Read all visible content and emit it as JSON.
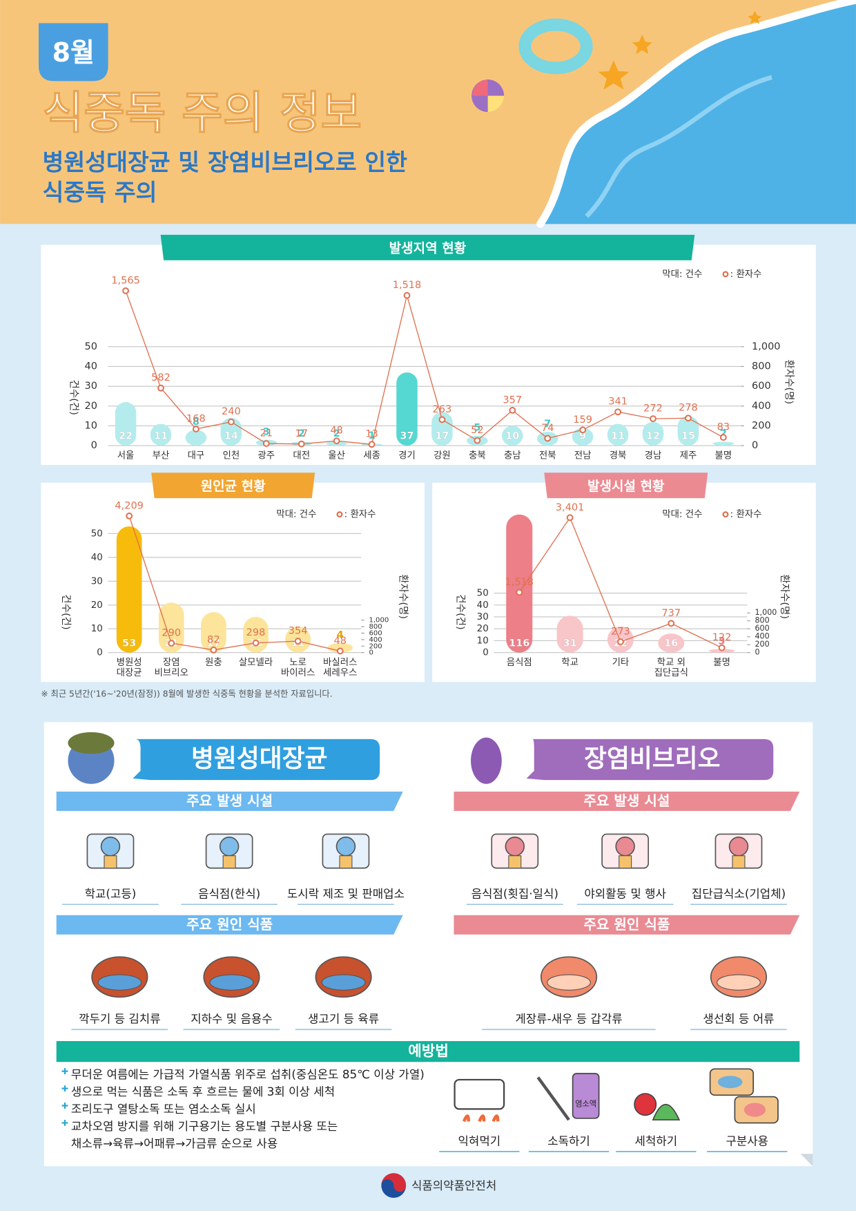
{
  "header": {
    "month": "8월",
    "title": "식중독 주의 정보",
    "subtitle": [
      "병원성대장균 및 장염비브리오로 인한",
      "식중독 주의"
    ]
  },
  "chart_data": [
    {
      "type": "bar-line",
      "title": "발생지역 현황",
      "categories": [
        "서울",
        "부산",
        "대구",
        "인천",
        "광주",
        "대전",
        "울산",
        "세종",
        "경기",
        "강원",
        "충북",
        "충남",
        "전북",
        "전남",
        "경북",
        "경남",
        "제주",
        "불명"
      ],
      "series": [
        {
          "name": "막대: 건수",
          "values": [
            22,
            11,
            8,
            14,
            3,
            2,
            2,
            1,
            37,
            17,
            5,
            10,
            7,
            9,
            11,
            12,
            15,
            2
          ],
          "colors": [
            "#b4eced",
            "#b4eced",
            "#b4eced",
            "#b4eced",
            "#b4eced",
            "#b4eced",
            "#b4eced",
            "#b4eced",
            "#55d8d2",
            "#b4eced",
            "#b4eced",
            "#b4eced",
            "#b4eced",
            "#b4eced",
            "#b4eced",
            "#b4eced",
            "#b4eced",
            "#b4eced"
          ]
        },
        {
          "name": ": 환자수",
          "axis": "y2",
          "color": "#e0704f",
          "values": [
            1565,
            582,
            168,
            240,
            21,
            17,
            48,
            13,
            1518,
            263,
            52,
            357,
            74,
            159,
            341,
            272,
            278,
            83
          ],
          "value_labels": [
            "1,565",
            "582",
            "168",
            "240",
            "21",
            "17",
            "48",
            "13",
            "1,518",
            "263",
            "52",
            "357",
            "74",
            "159",
            "341",
            "272",
            "278",
            "83"
          ]
        }
      ],
      "ylim": [
        0,
        80
      ],
      "yticks": [
        0,
        10,
        20,
        30,
        40,
        50
      ],
      "y2lim": [
        0,
        1600
      ],
      "y2ticks": [
        0,
        200,
        400,
        600,
        800,
        {
          "value": 1000,
          "label": "1,000"
        }
      ],
      "ylabel": "건수(건)",
      "y2label": "환자수(명)",
      "grid": true
    },
    {
      "type": "bar-line",
      "title": "원인균 현황",
      "categories": [
        "병원성\n대장균",
        "장염\n비브리오",
        "원충",
        "살모넬라",
        "노로\n바이러스",
        "바실러스\n세레우스"
      ],
      "series": [
        {
          "name": "막대: 건수",
          "values": [
            53,
            21,
            17,
            15,
            11,
            4
          ],
          "colors": [
            "#f6bb0b",
            "#fce49a",
            "#fce49a",
            "#fce49a",
            "#fce49a",
            "#fce49a"
          ]
        },
        {
          "name": ": 환자수",
          "axis": "y2",
          "color": "#e0704f",
          "values": [
            4209,
            290,
            82,
            298,
            354,
            48
          ],
          "value_labels": [
            "4,209",
            "290",
            "82",
            "298",
            "354",
            "48"
          ]
        }
      ],
      "ylim": [
        0,
        60
      ],
      "yticks": [
        0,
        10,
        20,
        30,
        40,
        50
      ],
      "y2lim": [
        0,
        4400
      ],
      "y2ticks": [
        0,
        200,
        400,
        600,
        800,
        {
          "value": 1000,
          "label": "1,000"
        }
      ],
      "ylabel": "건수(건)",
      "y2label": "환자수(명)",
      "grid": true
    },
    {
      "type": "bar-line",
      "title": "발생시설 현황",
      "categories": [
        "음식점",
        "학교",
        "기타",
        "학교 외\n집단급식",
        "불명"
      ],
      "series": [
        {
          "name": "막대: 건수",
          "values": [
            116,
            31,
            22,
            16,
            3
          ],
          "colors": [
            "#ec7f88",
            "#f8c5c9",
            "#f8c5c9",
            "#f8c5c9",
            "#f8c5c9"
          ]
        },
        {
          "name": ": 환자수",
          "axis": "y2",
          "color": "#e0704f",
          "values": [
            1518,
            3401,
            273,
            737,
            122
          ],
          "value_labels": [
            "1,518",
            "3,401",
            "273",
            "737",
            "122"
          ]
        }
      ],
      "ylim": [
        0,
        120
      ],
      "yticks": [
        0,
        10,
        20,
        30,
        40,
        50
      ],
      "y2lim": [
        0,
        3600
      ],
      "y2ticks": [
        0,
        200,
        400,
        600,
        800,
        {
          "value": 1000,
          "label": "1,000"
        }
      ],
      "ylabel": "건수(건)",
      "y2label": "환자수(명)",
      "grid": true
    }
  ],
  "footnote": "※ 최근 5년간('16~'20년(잠정)) 8월에 발생한 식중독 현황을 분석한 자료입니다.",
  "pathogens": [
    {
      "name": "병원성대장균",
      "facilities_title": "주요 발생 시설",
      "facilities": [
        "학교(고등)",
        "음식점(한식)",
        "도시락 제조 및 판매업소"
      ],
      "foods_title": "주요 원인 식품",
      "foods": [
        "깍두기 등 김치류",
        "지하수 및 음용수",
        "생고기 등 육류"
      ]
    },
    {
      "name": "장염비브리오",
      "facilities_title": "주요 발생 시설",
      "facilities": [
        "음식점(횟집·일식)",
        "야외활동 및 행사",
        "집단급식소(기업체)"
      ],
      "foods_title": "주요 원인 식품",
      "foods": [
        "게장류-새우 등 갑각류",
        "생선회 등 어류"
      ]
    }
  ],
  "prevention": {
    "title": "예방법",
    "tips": [
      [
        "무더운 여름에는 가급적 가열식품 위주로 섭취(중심온도 85℃ 이상 가열)"
      ],
      [
        "생으로 먹는 식품은 소독 후 흐르는 물에 3회 이상 세척"
      ],
      [
        "조리도구 열탕소독 또는 염소소독 실시"
      ],
      [
        "교차오염 방지를 위해 기구용기는 용도별 구분사용 또는",
        "채소류→육류→어패류→가금류 순으로 사용"
      ]
    ],
    "actions": [
      "익혀먹기",
      "소독하기",
      "세척하기",
      "구분사용"
    ],
    "bottle_label": "염소액"
  },
  "footer": "식품의약품안전처"
}
